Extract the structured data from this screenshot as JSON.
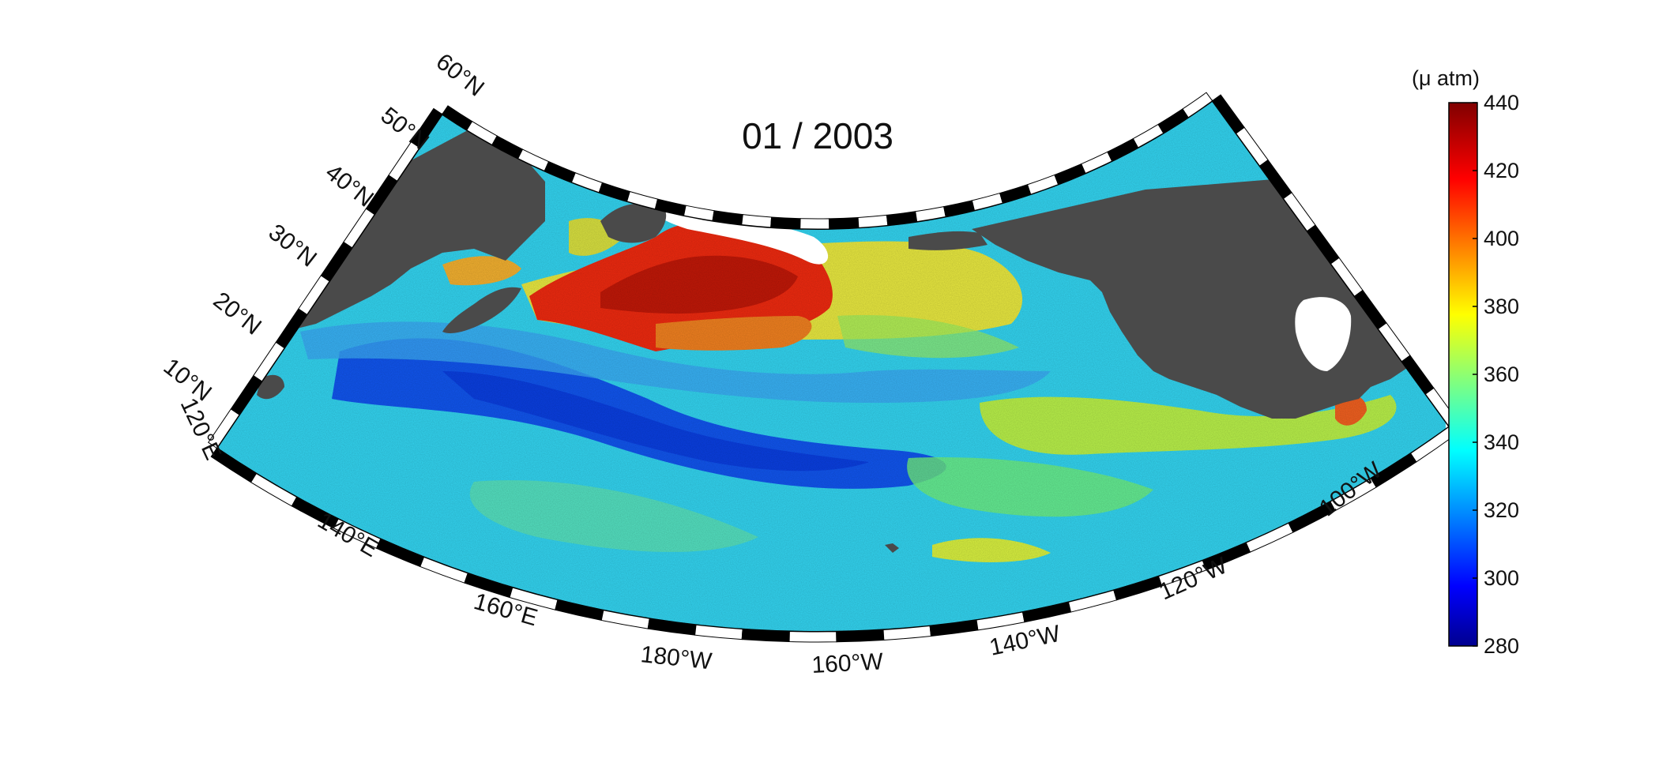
{
  "title": "01 / 2003",
  "colorbar": {
    "unit": "(μ atm)",
    "min": 280,
    "max": 440,
    "ticks": [
      "280",
      "300",
      "320",
      "340",
      "360",
      "380",
      "400",
      "420",
      "440"
    ],
    "colormap": "jet"
  },
  "map": {
    "projection": "conic",
    "lat_range": [
      10,
      60
    ],
    "lon_range": [
      120,
      260
    ],
    "land_color": "#4a4a4a",
    "lat_labels": [
      "10°N",
      "20°N",
      "30°N",
      "40°N",
      "50°N",
      "60°N"
    ],
    "lon_labels": [
      "120°E",
      "140°E",
      "160°E",
      "180°W",
      "160°W",
      "140°W",
      "120°W",
      "100°W"
    ]
  }
}
